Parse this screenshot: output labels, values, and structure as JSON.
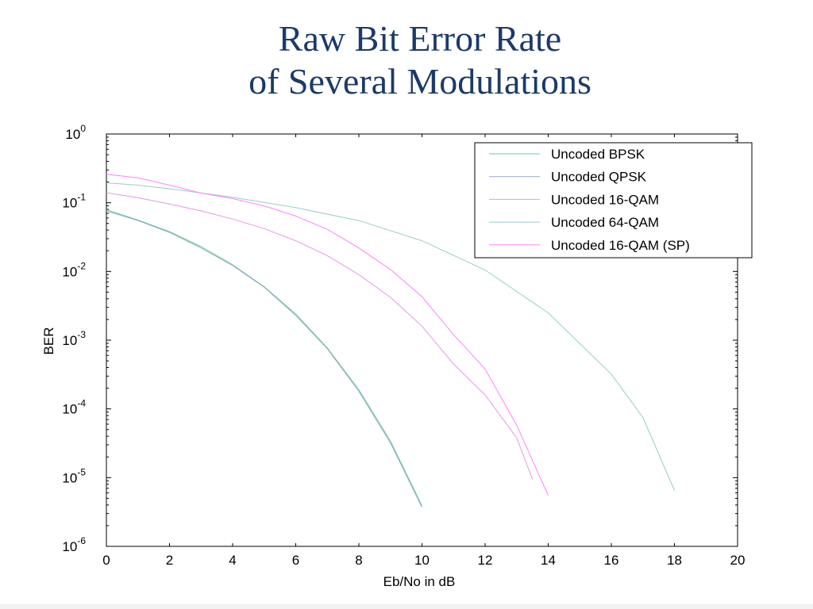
{
  "slide": {
    "title_line1": "Raw Bit Error Rate",
    "title_line2": "of Several Modulations"
  },
  "chart_data": {
    "type": "line",
    "xlabel": "Eb/No in dB",
    "ylabel": "BER",
    "xlim": [
      0,
      20
    ],
    "xticks": [
      0,
      2,
      4,
      6,
      8,
      10,
      12,
      14,
      16,
      18,
      20
    ],
    "ylim": [
      1e-06,
      1
    ],
    "yscale": "log",
    "yticks": [
      {
        "value": 1,
        "base": "10",
        "exp": "0"
      },
      {
        "value": 0.1,
        "base": "10",
        "exp": "-1"
      },
      {
        "value": 0.01,
        "base": "10",
        "exp": "-2"
      },
      {
        "value": 0.001,
        "base": "10",
        "exp": "-3"
      },
      {
        "value": 0.0001,
        "base": "10",
        "exp": "-4"
      },
      {
        "value": 1e-05,
        "base": "10",
        "exp": "-5"
      },
      {
        "value": 1e-06,
        "base": "10",
        "exp": "-6"
      }
    ],
    "grid": false,
    "legend_position": "top-right",
    "series": [
      {
        "name": "Uncoded BPSK",
        "color": "#66cc99",
        "x": [
          0,
          1,
          2,
          3,
          4,
          5,
          6,
          7,
          8,
          9,
          10
        ],
        "y": [
          0.079,
          0.056,
          0.038,
          0.023,
          0.0125,
          0.006,
          0.0024,
          0.00077,
          0.00019,
          3.4e-05,
          3.9e-06
        ]
      },
      {
        "name": "Uncoded QPSK",
        "color": "#99aacc",
        "x": [
          0,
          1,
          2,
          3,
          4,
          5,
          6,
          7,
          8,
          9,
          10
        ],
        "y": [
          0.076,
          0.055,
          0.037,
          0.022,
          0.0122,
          0.0059,
          0.0023,
          0.00075,
          0.00018,
          3.2e-05,
          3.7e-06
        ]
      },
      {
        "name": "Uncoded 16-QAM",
        "color": "#e699e6",
        "x": [
          0,
          1,
          2,
          3,
          4,
          5,
          6,
          7,
          8,
          9,
          10,
          11,
          12,
          13,
          13.5
        ],
        "y": [
          0.14,
          0.118,
          0.096,
          0.076,
          0.058,
          0.042,
          0.028,
          0.017,
          0.009,
          0.0042,
          0.0016,
          0.00045,
          0.00016,
          3.8e-05,
          9.5e-06
        ]
      },
      {
        "name": "Uncoded 64-QAM",
        "color": "#99cccc",
        "x": [
          0,
          1,
          2,
          4,
          6,
          8,
          10,
          12,
          14,
          16,
          17,
          18
        ],
        "y": [
          0.195,
          0.18,
          0.16,
          0.12,
          0.085,
          0.055,
          0.028,
          0.0105,
          0.0025,
          0.00032,
          7.5e-05,
          6.5e-06
        ]
      },
      {
        "name": "Uncoded 16-QAM (SP)",
        "color": "#ff80ff",
        "x": [
          0,
          1,
          2,
          3,
          4,
          5,
          6,
          7,
          8,
          9,
          10,
          11,
          12,
          13,
          14
        ],
        "y": [
          0.26,
          0.23,
          0.18,
          0.138,
          0.115,
          0.09,
          0.064,
          0.041,
          0.022,
          0.0107,
          0.0043,
          0.0012,
          0.00038,
          5.8e-05,
          5.5e-06
        ]
      }
    ]
  }
}
